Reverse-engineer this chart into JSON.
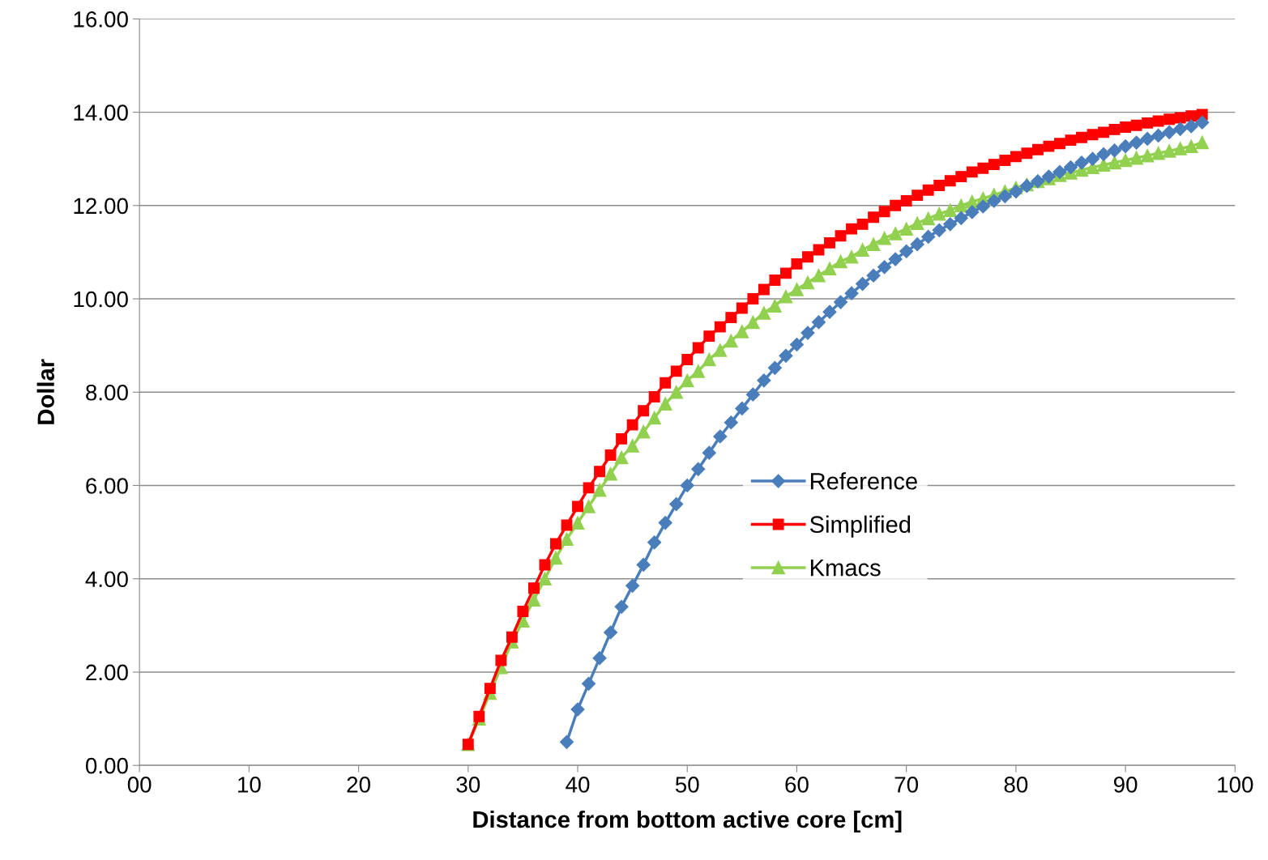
{
  "chart_data": {
    "type": "line",
    "xlabel": "Distance from bottom active core [cm]",
    "ylabel": "Dollar",
    "xlim": [
      0,
      100
    ],
    "xticks": [
      {
        "value": 0,
        "label": "00"
      },
      10,
      20,
      30,
      40,
      50,
      60,
      70,
      80,
      90,
      100
    ],
    "ylim": [
      0,
      16
    ],
    "yticks": [
      {
        "value": 0,
        "label": "0.00"
      },
      {
        "value": 2,
        "label": "2.00"
      },
      {
        "value": 4,
        "label": "4.00"
      },
      {
        "value": 6,
        "label": "6.00"
      },
      {
        "value": 8,
        "label": "8.00"
      },
      {
        "value": 10,
        "label": "10.00"
      },
      {
        "value": 12,
        "label": "12.00"
      },
      {
        "value": 14,
        "label": "14.00"
      },
      {
        "value": 16,
        "label": "16.00"
      }
    ],
    "grid": "y",
    "legend": "right",
    "line_style": "solid",
    "series": [
      {
        "name": "Reference",
        "color": "#4a7ebb",
        "marker": "diamond",
        "x": [
          39,
          40,
          41,
          42,
          43,
          44,
          45,
          46,
          47,
          48,
          49,
          50,
          51,
          52,
          53,
          54,
          55,
          56,
          57,
          58,
          59,
          60,
          61,
          62,
          63,
          64,
          65,
          66,
          67,
          68,
          69,
          70,
          71,
          72,
          73,
          74,
          75,
          76,
          77,
          78,
          79,
          80,
          81,
          82,
          83,
          84,
          85,
          86,
          87,
          88,
          89,
          90,
          91,
          92,
          93,
          94,
          95,
          96,
          97
        ],
        "values": [
          0.5,
          1.2,
          1.75,
          2.3,
          2.85,
          3.4,
          3.85,
          4.3,
          4.78,
          5.2,
          5.6,
          6.0,
          6.35,
          6.7,
          7.05,
          7.35,
          7.65,
          7.95,
          8.25,
          8.52,
          8.78,
          9.02,
          9.27,
          9.5,
          9.72,
          9.93,
          10.12,
          10.32,
          10.5,
          10.68,
          10.85,
          11.02,
          11.17,
          11.33,
          11.47,
          11.6,
          11.73,
          11.86,
          11.98,
          12.1,
          12.2,
          12.3,
          12.42,
          12.52,
          12.62,
          12.72,
          12.82,
          12.92,
          13.0,
          13.1,
          13.18,
          13.27,
          13.35,
          13.43,
          13.5,
          13.57,
          13.64,
          13.7,
          13.78
        ]
      },
      {
        "name": "Simplified",
        "color": "#ff0000",
        "marker": "square",
        "x": [
          30,
          31,
          32,
          33,
          34,
          35,
          36,
          37,
          38,
          39,
          40,
          41,
          42,
          43,
          44,
          45,
          46,
          47,
          48,
          49,
          50,
          51,
          52,
          53,
          54,
          55,
          56,
          57,
          58,
          59,
          60,
          61,
          62,
          63,
          64,
          65,
          66,
          67,
          68,
          69,
          70,
          71,
          72,
          73,
          74,
          75,
          76,
          77,
          78,
          79,
          80,
          81,
          82,
          83,
          84,
          85,
          86,
          87,
          88,
          89,
          90,
          91,
          92,
          93,
          94,
          95,
          96,
          97
        ],
        "values": [
          0.45,
          1.05,
          1.65,
          2.25,
          2.75,
          3.3,
          3.8,
          4.3,
          4.75,
          5.15,
          5.55,
          5.95,
          6.3,
          6.65,
          7.0,
          7.3,
          7.6,
          7.9,
          8.2,
          8.45,
          8.7,
          8.95,
          9.2,
          9.4,
          9.6,
          9.8,
          10.0,
          10.2,
          10.4,
          10.55,
          10.75,
          10.9,
          11.05,
          11.2,
          11.35,
          11.5,
          11.6,
          11.75,
          11.87,
          12.0,
          12.1,
          12.22,
          12.33,
          12.43,
          12.53,
          12.62,
          12.72,
          12.8,
          12.88,
          12.97,
          13.05,
          13.12,
          13.2,
          13.27,
          13.33,
          13.4,
          13.46,
          13.52,
          13.57,
          13.63,
          13.68,
          13.72,
          13.77,
          13.81,
          13.85,
          13.88,
          13.92,
          13.95
        ]
      },
      {
        "name": "Kmacs",
        "color": "#92d050",
        "marker": "triangle",
        "x": [
          30,
          31,
          32,
          33,
          34,
          35,
          36,
          37,
          38,
          39,
          40,
          41,
          42,
          43,
          44,
          45,
          46,
          47,
          48,
          49,
          50,
          51,
          52,
          53,
          54,
          55,
          56,
          57,
          58,
          59,
          60,
          61,
          62,
          63,
          64,
          65,
          66,
          67,
          68,
          69,
          70,
          71,
          72,
          73,
          74,
          75,
          76,
          77,
          78,
          79,
          80,
          81,
          82,
          83,
          84,
          85,
          86,
          87,
          88,
          89,
          90,
          91,
          92,
          93,
          94,
          95,
          96,
          97
        ],
        "values": [
          0.45,
          1.0,
          1.55,
          2.1,
          2.65,
          3.1,
          3.55,
          4.0,
          4.45,
          4.85,
          5.2,
          5.55,
          5.9,
          6.25,
          6.6,
          6.85,
          7.15,
          7.45,
          7.75,
          8.0,
          8.25,
          8.45,
          8.7,
          8.9,
          9.1,
          9.3,
          9.5,
          9.7,
          9.85,
          10.05,
          10.2,
          10.35,
          10.5,
          10.65,
          10.8,
          10.9,
          11.05,
          11.17,
          11.3,
          11.4,
          11.5,
          11.62,
          11.72,
          11.82,
          11.9,
          12.0,
          12.08,
          12.15,
          12.23,
          12.3,
          12.38,
          12.45,
          12.52,
          12.58,
          12.65,
          12.7,
          12.76,
          12.82,
          12.87,
          12.92,
          12.97,
          13.02,
          13.07,
          13.12,
          13.17,
          13.22,
          13.27,
          13.35
        ]
      }
    ]
  }
}
